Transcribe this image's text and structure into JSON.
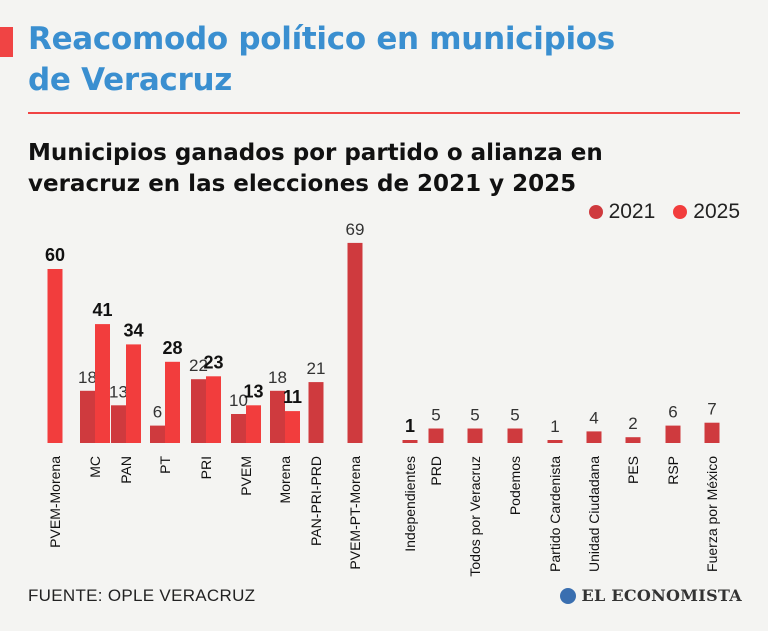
{
  "header": {
    "title_line1": "Reacomodo político en municipios",
    "title_line2": "de Veracruz"
  },
  "footer": {
    "source": "FUENTE: OPLE VERACRUZ",
    "logo_text": "EL ECONOMISTA"
  },
  "colors": {
    "accent": "#f04444",
    "title": "#3a8fd0",
    "color_2021": "#cf3a3e",
    "color_2025": "#f23d3d"
  },
  "chart_data": {
    "type": "bar",
    "title": "Municipios ganados por partido o alianza en veracruz en las elecciones de 2021 y 2025",
    "xlabel": "",
    "ylabel": "",
    "ylim": [
      0,
      70
    ],
    "grid": false,
    "legend_position": "top-right",
    "categories": [
      "PVEM-Morena",
      "MC",
      "PAN",
      "PT",
      "PRI",
      "PVEM",
      "Morena",
      "PAN-PRI-PRD",
      "PVEM-PT-Morena",
      "Independientes",
      "PRD",
      "Todos por Veracruz",
      "Podemos",
      "Partido Cardenista",
      "Unidad Ciudadana",
      "PES",
      "RSP",
      "Fuerza por México"
    ],
    "series": [
      {
        "name": "2021",
        "values": [
          null,
          18,
          13,
          6,
          22,
          10,
          18,
          21,
          69,
          1,
          5,
          5,
          5,
          1,
          4,
          2,
          6,
          7
        ]
      },
      {
        "name": "2025",
        "values": [
          60,
          41,
          34,
          28,
          23,
          13,
          11,
          null,
          null,
          null,
          null,
          null,
          null,
          null,
          null,
          null,
          null,
          null
        ]
      }
    ]
  }
}
